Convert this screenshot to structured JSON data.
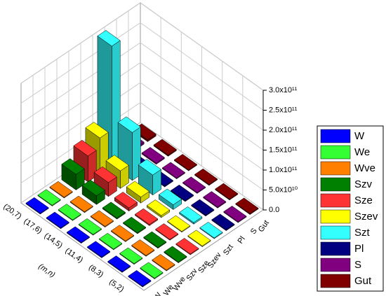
{
  "chart_data": {
    "type": "bar3d",
    "x_label": "(m,n)",
    "categories": [
      "(20,7)",
      "(17,6)",
      "(14,5)",
      "(11,4)",
      "(8,3)",
      "(5,2)"
    ],
    "series": [
      {
        "name": "W",
        "color": "#0000ff",
        "values": [
          2000000000,
          2000000000,
          2000000000,
          2000000000,
          2000000000,
          2000000000
        ]
      },
      {
        "name": "We",
        "color": "#33ff33",
        "values": [
          2000000000,
          2000000000,
          2000000000,
          2000000000,
          2000000000,
          2000000000
        ]
      },
      {
        "name": "Wve",
        "color": "#ff8000",
        "values": [
          2000000000,
          2000000000,
          2000000000,
          2000000000,
          2000000000,
          2000000000
        ]
      },
      {
        "name": "Szv",
        "color": "#008000",
        "values": [
          39000000000,
          22000000000,
          3000000000,
          2000000000,
          2000000000,
          2000000000
        ]
      },
      {
        "name": "Sze",
        "color": "#ff3333",
        "values": [
          65000000000,
          35000000000,
          8000000000,
          3000000000,
          2000000000,
          2000000000
        ]
      },
      {
        "name": "Szev",
        "color": "#ffff00",
        "values": [
          90000000000,
          44000000000,
          15000000000,
          5000000000,
          2000000000,
          2000000000
        ]
      },
      {
        "name": "Szt",
        "color": "#33ffff",
        "values": [
          300000000000,
          120000000000,
          50000000000,
          12000000000,
          4000000000,
          2000000000
        ]
      },
      {
        "name": "Pl",
        "color": "#000080",
        "values": [
          5000000000,
          3000000000,
          2000000000,
          2000000000,
          2000000000,
          2000000000
        ]
      },
      {
        "name": "S",
        "color": "#800080",
        "values": [
          5000000000,
          3000000000,
          2000000000,
          2000000000,
          2000000000,
          2000000000
        ]
      },
      {
        "name": "Gut",
        "color": "#800000",
        "values": [
          5000000000,
          3000000000,
          2000000000,
          2000000000,
          2000000000,
          2000000000
        ]
      }
    ],
    "ylim": [
      0,
      300000000000
    ],
    "yticks": [
      {
        "value": 0,
        "label": "0.0"
      },
      {
        "value": 50000000000,
        "label": "5.0x10¹⁰"
      },
      {
        "value": 100000000000,
        "label": "1.0x10¹¹"
      },
      {
        "value": 150000000000,
        "label": "1.5x10¹¹"
      },
      {
        "value": 200000000000,
        "label": "2.0x10¹¹"
      },
      {
        "value": 250000000000,
        "label": "2.5x10¹¹"
      },
      {
        "value": 300000000000,
        "label": "3.0x10¹¹"
      }
    ],
    "grid": true
  }
}
